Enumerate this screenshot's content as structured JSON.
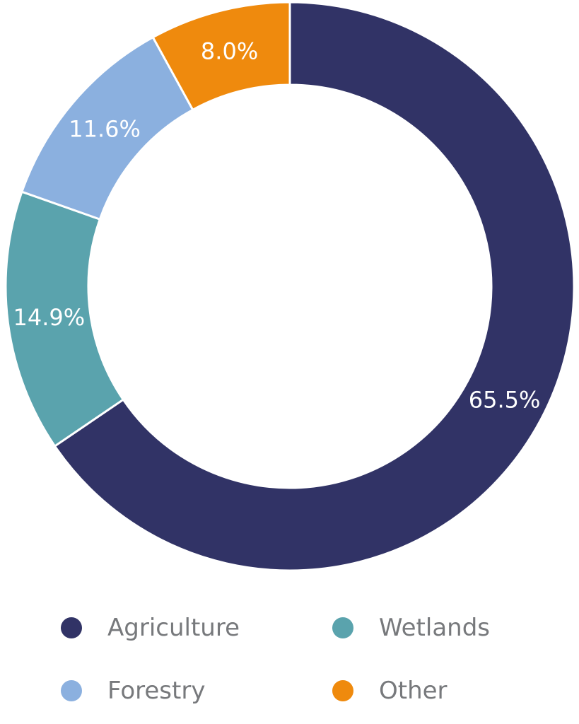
{
  "chart_data": {
    "type": "pie",
    "variant": "donut",
    "categories": [
      "Agriculture",
      "Wetlands",
      "Forestry",
      "Other"
    ],
    "values": [
      65.5,
      14.9,
      11.6,
      8.0
    ],
    "value_labels": [
      "65.5%",
      "14.9%",
      "11.6%",
      "8.0%"
    ],
    "colors": [
      "#313366",
      "#5aa3ad",
      "#8bb0df",
      "#ef8a0d"
    ],
    "start": "12 o'clock",
    "direction": "clockwise",
    "legend_position": "bottom",
    "title": ""
  },
  "legend": {
    "items": [
      {
        "label": "Agriculture",
        "color": "#313366"
      },
      {
        "label": "Wetlands",
        "color": "#5aa3ad"
      },
      {
        "label": "Forestry",
        "color": "#8bb0df"
      },
      {
        "label": "Other",
        "color": "#ef8a0d"
      }
    ]
  }
}
